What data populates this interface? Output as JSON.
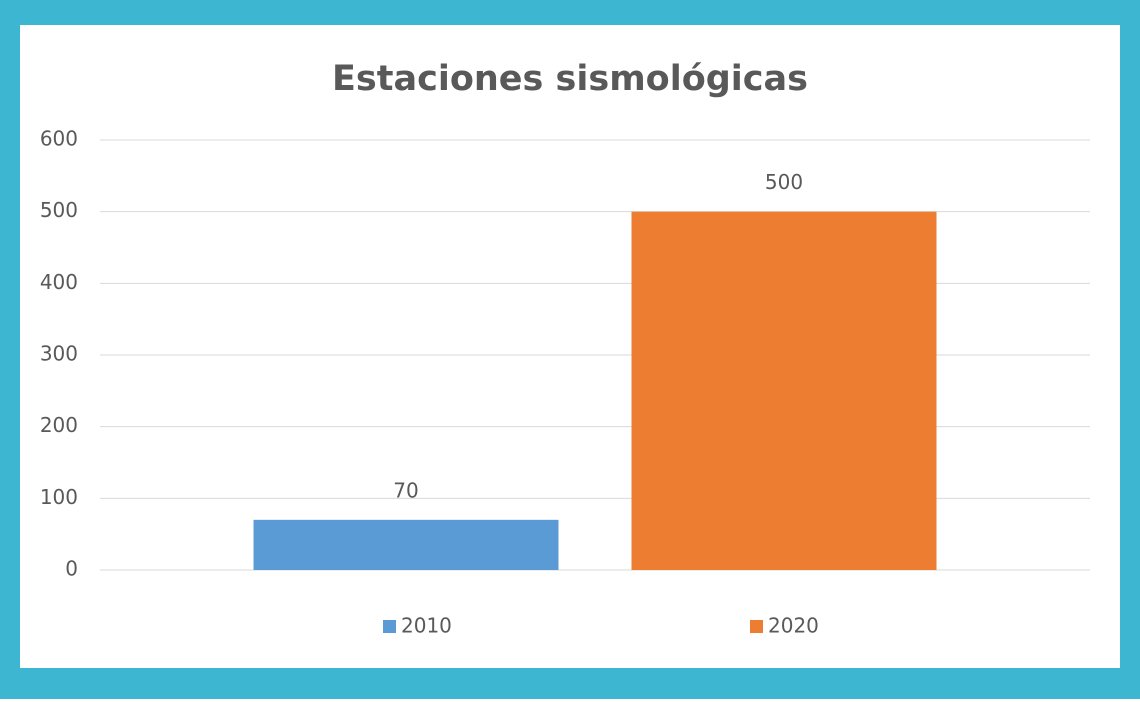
{
  "chart_data": {
    "type": "bar",
    "title": "Estaciones sismológicas",
    "categories": [
      null
    ],
    "series": [
      {
        "name": "2010",
        "color": "#5b9bd5",
        "values": [
          70
        ]
      },
      {
        "name": "2020",
        "color": "#ed7d31",
        "values": [
          500
        ]
      }
    ],
    "ylim": [
      0,
      600
    ],
    "yticks": [
      0,
      100,
      200,
      300,
      400,
      500,
      600
    ],
    "grid": true,
    "legend": "bottom"
  }
}
